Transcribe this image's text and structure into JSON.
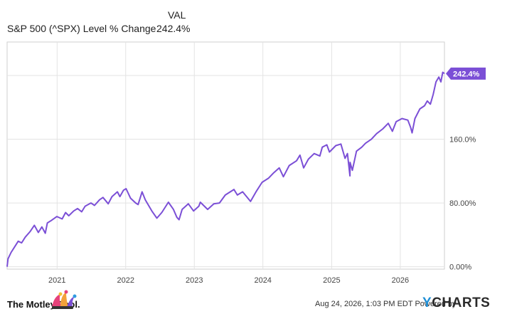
{
  "legend": {
    "header": "VAL",
    "series_name": "S&P 500 (^SPX) Level % Change",
    "value": "242.4%"
  },
  "chart_data": {
    "type": "line",
    "series": [
      {
        "name": "S&P 500 (^SPX) Level % Change",
        "color": "#7b4fd6",
        "end_label": "242.4%",
        "points": [
          [
            "2020-04-10",
            0
          ],
          [
            "2020-04-15",
            10
          ],
          [
            "2020-05-01",
            18
          ],
          [
            "2020-05-20",
            25
          ],
          [
            "2020-06-08",
            32
          ],
          [
            "2020-06-26",
            30
          ],
          [
            "2020-07-15",
            37
          ],
          [
            "2020-08-10",
            44
          ],
          [
            "2020-09-02",
            52
          ],
          [
            "2020-09-23",
            43
          ],
          [
            "2020-10-12",
            50
          ],
          [
            "2020-10-30",
            42
          ],
          [
            "2020-11-10",
            55
          ],
          [
            "2020-12-01",
            58
          ],
          [
            "2020-12-31",
            63
          ],
          [
            "2021-01-28",
            60
          ],
          [
            "2021-02-15",
            68
          ],
          [
            "2021-03-04",
            64
          ],
          [
            "2021-03-30",
            70
          ],
          [
            "2021-04-20",
            73
          ],
          [
            "2021-05-12",
            69
          ],
          [
            "2021-05-30",
            76
          ],
          [
            "2021-06-30",
            80
          ],
          [
            "2021-07-19",
            77
          ],
          [
            "2021-08-15",
            84
          ],
          [
            "2021-09-02",
            87
          ],
          [
            "2021-09-30",
            79
          ],
          [
            "2021-10-20",
            88
          ],
          [
            "2021-11-18",
            94
          ],
          [
            "2021-12-01",
            88
          ],
          [
            "2021-12-20",
            96
          ],
          [
            "2022-01-03",
            98
          ],
          [
            "2022-01-27",
            86
          ],
          [
            "2022-02-23",
            80
          ],
          [
            "2022-03-08",
            78
          ],
          [
            "2022-03-29",
            94
          ],
          [
            "2022-04-15",
            84
          ],
          [
            "2022-05-20",
            70
          ],
          [
            "2022-06-16",
            61
          ],
          [
            "2022-07-12",
            68
          ],
          [
            "2022-08-16",
            81
          ],
          [
            "2022-09-12",
            72
          ],
          [
            "2022-09-30",
            62
          ],
          [
            "2022-10-12",
            59
          ],
          [
            "2022-10-28",
            72
          ],
          [
            "2022-11-30",
            79
          ],
          [
            "2022-12-28",
            70
          ],
          [
            "2023-01-25",
            76
          ],
          [
            "2023-02-02",
            81
          ],
          [
            "2023-03-13",
            72
          ],
          [
            "2023-04-15",
            79
          ],
          [
            "2023-05-15",
            80
          ],
          [
            "2023-06-15",
            90
          ],
          [
            "2023-07-31",
            97
          ],
          [
            "2023-08-18",
            90
          ],
          [
            "2023-09-15",
            94
          ],
          [
            "2023-10-27",
            82
          ],
          [
            "2023-11-28",
            95
          ],
          [
            "2023-12-28",
            106
          ],
          [
            "2024-01-30",
            111
          ],
          [
            "2024-02-28",
            118
          ],
          [
            "2024-03-28",
            124
          ],
          [
            "2024-04-19",
            113
          ],
          [
            "2024-05-20",
            127
          ],
          [
            "2024-06-28",
            133
          ],
          [
            "2024-07-16",
            140
          ],
          [
            "2024-08-05",
            124
          ],
          [
            "2024-08-30",
            135
          ],
          [
            "2024-09-30",
            142
          ],
          [
            "2024-10-30",
            139
          ],
          [
            "2024-11-12",
            150
          ],
          [
            "2024-12-06",
            153
          ],
          [
            "2024-12-20",
            144
          ],
          [
            "2025-01-23",
            152
          ],
          [
            "2025-02-19",
            154
          ],
          [
            "2025-03-13",
            136
          ],
          [
            "2025-03-26",
            142
          ],
          [
            "2025-04-08",
            114
          ],
          [
            "2025-04-09",
            131
          ],
          [
            "2025-04-21",
            121
          ],
          [
            "2025-05-13",
            145
          ],
          [
            "2025-06-10",
            150
          ],
          [
            "2025-06-30",
            155
          ],
          [
            "2025-07-31",
            160
          ],
          [
            "2025-08-28",
            167
          ],
          [
            "2025-09-30",
            173
          ],
          [
            "2025-10-29",
            180
          ],
          [
            "2025-11-20",
            170
          ],
          [
            "2025-12-10",
            182
          ],
          [
            "2026-01-10",
            186
          ],
          [
            "2026-02-10",
            184
          ],
          [
            "2026-02-25",
            175
          ],
          [
            "2026-03-05",
            168
          ],
          [
            "2026-03-20",
            186
          ],
          [
            "2026-04-15",
            198
          ],
          [
            "2026-05-10",
            202
          ],
          [
            "2026-05-25",
            208
          ],
          [
            "2026-06-10",
            204
          ],
          [
            "2026-06-25",
            216
          ],
          [
            "2026-07-10",
            232
          ],
          [
            "2026-07-25",
            238
          ],
          [
            "2026-08-05",
            232
          ],
          [
            "2026-08-15",
            244
          ],
          [
            "2026-08-24",
            242.4
          ]
        ]
      }
    ],
    "x_range": [
      "2020-04-10",
      "2026-08-24"
    ],
    "x_ticks": [
      "2021",
      "2022",
      "2023",
      "2024",
      "2025",
      "2026"
    ],
    "ylim": [
      -3,
      282
    ],
    "y_ticks": [
      0,
      80,
      160,
      240
    ],
    "y_tick_labels": [
      "0.00%",
      "80.00%",
      "160.0%",
      ""
    ],
    "grid": true,
    "y_axis_position": "right"
  },
  "footer": {
    "brand": "The Motley Fool.",
    "credit": "Aug 24, 2026, 1:03 PM EDT  Powered by",
    "ycharts_y": "Y",
    "ycharts_rest": "CHARTS"
  }
}
